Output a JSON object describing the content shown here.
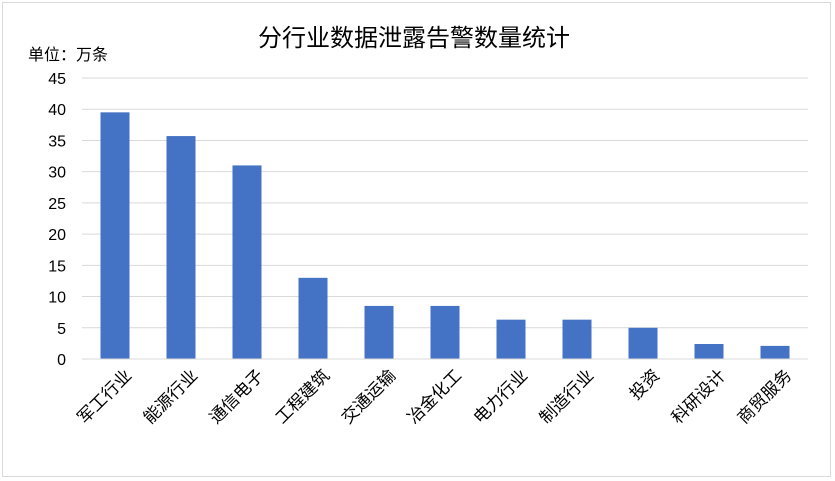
{
  "chart_data": {
    "type": "bar",
    "title": "分行业数据泄露告警数量统计",
    "unit_label": "单位：万条",
    "categories": [
      "军工行业",
      "能源行业",
      "通信电子",
      "工程建筑",
      "交通运输",
      "冶金化工",
      "电力行业",
      "制造行业",
      "投资",
      "科研设计",
      "商贸服务"
    ],
    "values": [
      39.5,
      35.7,
      31.0,
      13.0,
      8.5,
      8.5,
      6.3,
      6.3,
      5.0,
      2.4,
      2.1
    ],
    "ylim": [
      0,
      45
    ],
    "yticks": [
      "0",
      "5",
      "10",
      "15",
      "20",
      "25",
      "30",
      "35",
      "40",
      "45"
    ],
    "bar_color": "#4472c4",
    "grid": true,
    "legend": "none"
  }
}
